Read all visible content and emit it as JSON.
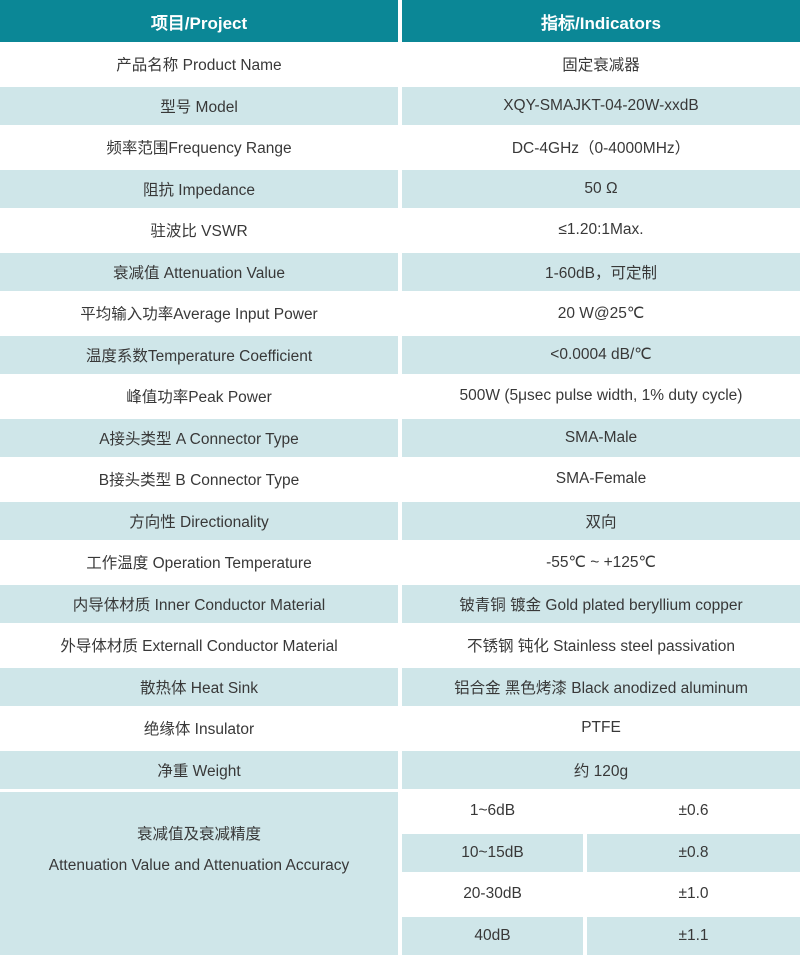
{
  "colors": {
    "header_bg": "#0b8796",
    "header_text": "#ffffff",
    "alt_row_bg": "#cfe6e9",
    "body_text": "#383838"
  },
  "table": {
    "header": {
      "project": "项目/Project",
      "indicators": "指标/Indicators"
    },
    "rows": [
      {
        "label": "产品名称 Product Name",
        "value": "固定衰减器"
      },
      {
        "label": "型号 Model",
        "value": "XQY-SMAJKT-04-20W-xxdB"
      },
      {
        "label": "频率范围Frequency Range",
        "value": "DC-4GHz（0-4000MHz）"
      },
      {
        "label": "阻抗 Impedance",
        "value": "50 Ω"
      },
      {
        "label": "驻波比 VSWR",
        "value": "≤1.20:1Max."
      },
      {
        "label": "衰减值 Attenuation Value",
        "value": "1-60dB，可定制"
      },
      {
        "label": "平均输入功率Average Input Power",
        "value": "20 W@25℃"
      },
      {
        "label": "温度系数Temperature Coefficient",
        "value": "<0.0004 dB/℃"
      },
      {
        "label": "峰值功率Peak Power",
        "value": "500W (5μsec pulse width, 1% duty cycle)"
      },
      {
        "label": "A接头类型 A Connector Type",
        "value": "SMA-Male"
      },
      {
        "label": "B接头类型 B Connector Type",
        "value": "SMA-Female"
      },
      {
        "label": "方向性 Directionality",
        "value": "双向"
      },
      {
        "label": "工作温度 Operation Temperature",
        "value": "-55℃ ~ +125℃"
      },
      {
        "label": "内导体材质 Inner Conductor Material",
        "value": "铍青铜 镀金 Gold plated beryllium copper"
      },
      {
        "label": "外导体材质 Externall Conductor Material",
        "value": "不锈钢 钝化 Stainless steel passivation"
      },
      {
        "label": "散热体 Heat Sink",
        "value": "铝合金 黑色烤漆 Black anodized aluminum"
      },
      {
        "label": "绝缘体 Insulator",
        "value": "PTFE"
      },
      {
        "label": "净重 Weight",
        "value": "约 120g"
      }
    ],
    "attenuation": {
      "label_cn": "衰减值及衰减精度",
      "label_en": "Attenuation Value and Attenuation Accuracy",
      "sub_rows": [
        {
          "range": "1~6dB",
          "accuracy": "±0.6"
        },
        {
          "range": "10~15dB",
          "accuracy": "±0.8"
        },
        {
          "range": "20-30dB",
          "accuracy": "±1.0"
        },
        {
          "range": "40dB",
          "accuracy": "±1.1"
        }
      ]
    }
  }
}
